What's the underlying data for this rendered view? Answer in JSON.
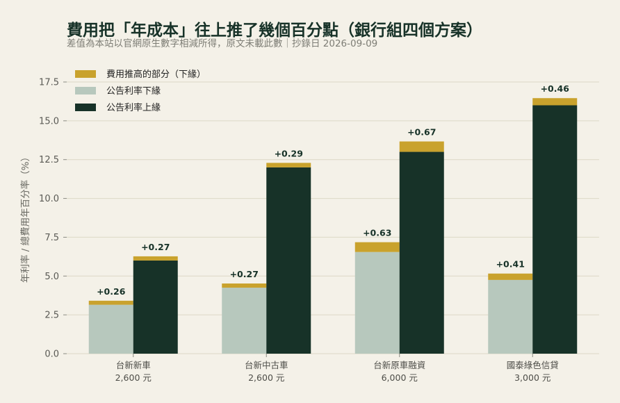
{
  "chart_data": {
    "type": "bar",
    "title": "費用把「年成本」往上推了幾個百分點（銀行組四個方案）",
    "subtitle": "差值為本站以官網原生數字相減所得，原文未載此數｜抄錄日 2026-09-09",
    "ylabel": "年利率 / 總費用年百分率（%）",
    "ylim": [
      0,
      17.5
    ],
    "yticks": [
      "0.0",
      "2.5",
      "5.0",
      "7.5",
      "10.0",
      "12.5",
      "15.0",
      "17.5"
    ],
    "grid": true,
    "legend_position": "top-left",
    "categories": [
      {
        "name": "台新新車",
        "fee": "2,600 元"
      },
      {
        "name": "台新中古車",
        "fee": "2,600 元"
      },
      {
        "name": "台新原車融資",
        "fee": "6,000 元"
      },
      {
        "name": "國泰綠色信貸",
        "fee": "3,000 元"
      }
    ],
    "series": [
      {
        "name": "公告利率下緣",
        "role": "lower",
        "values": [
          3.15,
          4.25,
          6.55,
          4.75
        ],
        "color": "#b7c8bd"
      },
      {
        "name": "公告利率上緣",
        "role": "upper",
        "values": [
          6.0,
          12.0,
          13.0,
          16.0
        ],
        "color": "#173228"
      },
      {
        "name": "費用推高的部分（下緣）",
        "role": "fee",
        "color": "#c9a22d"
      }
    ],
    "fee_deltas": {
      "lower": [
        0.26,
        0.27,
        0.63,
        0.41
      ],
      "upper": [
        0.27,
        0.29,
        0.67,
        0.46
      ]
    },
    "delta_labels": {
      "lower": [
        "+0.26",
        "+0.27",
        "+0.63",
        "+0.41"
      ],
      "upper": [
        "+0.27",
        "+0.29",
        "+0.67",
        "+0.46"
      ]
    },
    "legend_order": [
      "fee",
      "lower",
      "upper"
    ],
    "colors": {
      "background": "#f4f1e8",
      "grid": "#dcd8c6"
    }
  }
}
